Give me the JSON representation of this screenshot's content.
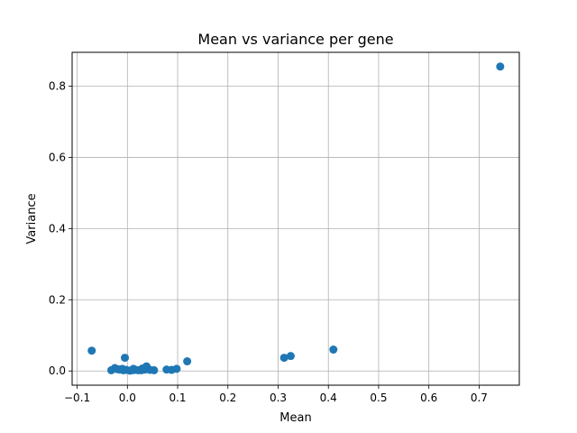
{
  "chart_data": {
    "type": "scatter",
    "title": "Mean vs variance per gene",
    "xlabel": "Mean",
    "ylabel": "Variance",
    "xlim": [
      -0.11,
      0.78
    ],
    "ylim": [
      -0.04,
      0.895
    ],
    "x_ticks": [
      -0.1,
      0.0,
      0.1,
      0.2,
      0.3,
      0.4,
      0.5,
      0.6,
      0.7
    ],
    "x_tick_labels": [
      "−0.1",
      "0.0",
      "0.1",
      "0.2",
      "0.3",
      "0.4",
      "0.5",
      "0.6",
      "0.7"
    ],
    "y_ticks": [
      0.0,
      0.2,
      0.4,
      0.6,
      0.8
    ],
    "y_tick_labels": [
      "0.0",
      "0.2",
      "0.4",
      "0.6",
      "0.8"
    ],
    "grid": true,
    "color": "#1f77b4",
    "points": [
      {
        "x": 0.742,
        "y": 0.855
      },
      {
        "x": 0.41,
        "y": 0.06
      },
      {
        "x": 0.325,
        "y": 0.042
      },
      {
        "x": 0.312,
        "y": 0.037
      },
      {
        "x": 0.119,
        "y": 0.027
      },
      {
        "x": -0.071,
        "y": 0.057
      },
      {
        "x": -0.005,
        "y": 0.037
      },
      {
        "x": 0.098,
        "y": 0.006
      },
      {
        "x": 0.088,
        "y": 0.003
      },
      {
        "x": 0.078,
        "y": 0.004
      },
      {
        "x": 0.053,
        "y": 0.002
      },
      {
        "x": 0.045,
        "y": 0.003
      },
      {
        "x": 0.038,
        "y": 0.013
      },
      {
        "x": 0.035,
        "y": 0.004
      },
      {
        "x": 0.028,
        "y": 0.002
      },
      {
        "x": 0.022,
        "y": 0.002
      },
      {
        "x": 0.016,
        "y": 0.003
      },
      {
        "x": 0.01,
        "y": 0.002
      },
      {
        "x": 0.005,
        "y": 0.001
      },
      {
        "x": -0.002,
        "y": 0.003
      },
      {
        "x": -0.008,
        "y": 0.002
      },
      {
        "x": -0.015,
        "y": 0.004
      },
      {
        "x": -0.02,
        "y": 0.005
      },
      {
        "x": -0.025,
        "y": 0.008
      },
      {
        "x": -0.032,
        "y": 0.002
      },
      {
        "x": 0.012,
        "y": 0.006
      },
      {
        "x": 0.03,
        "y": 0.007
      },
      {
        "x": -0.01,
        "y": 0.006
      }
    ]
  }
}
